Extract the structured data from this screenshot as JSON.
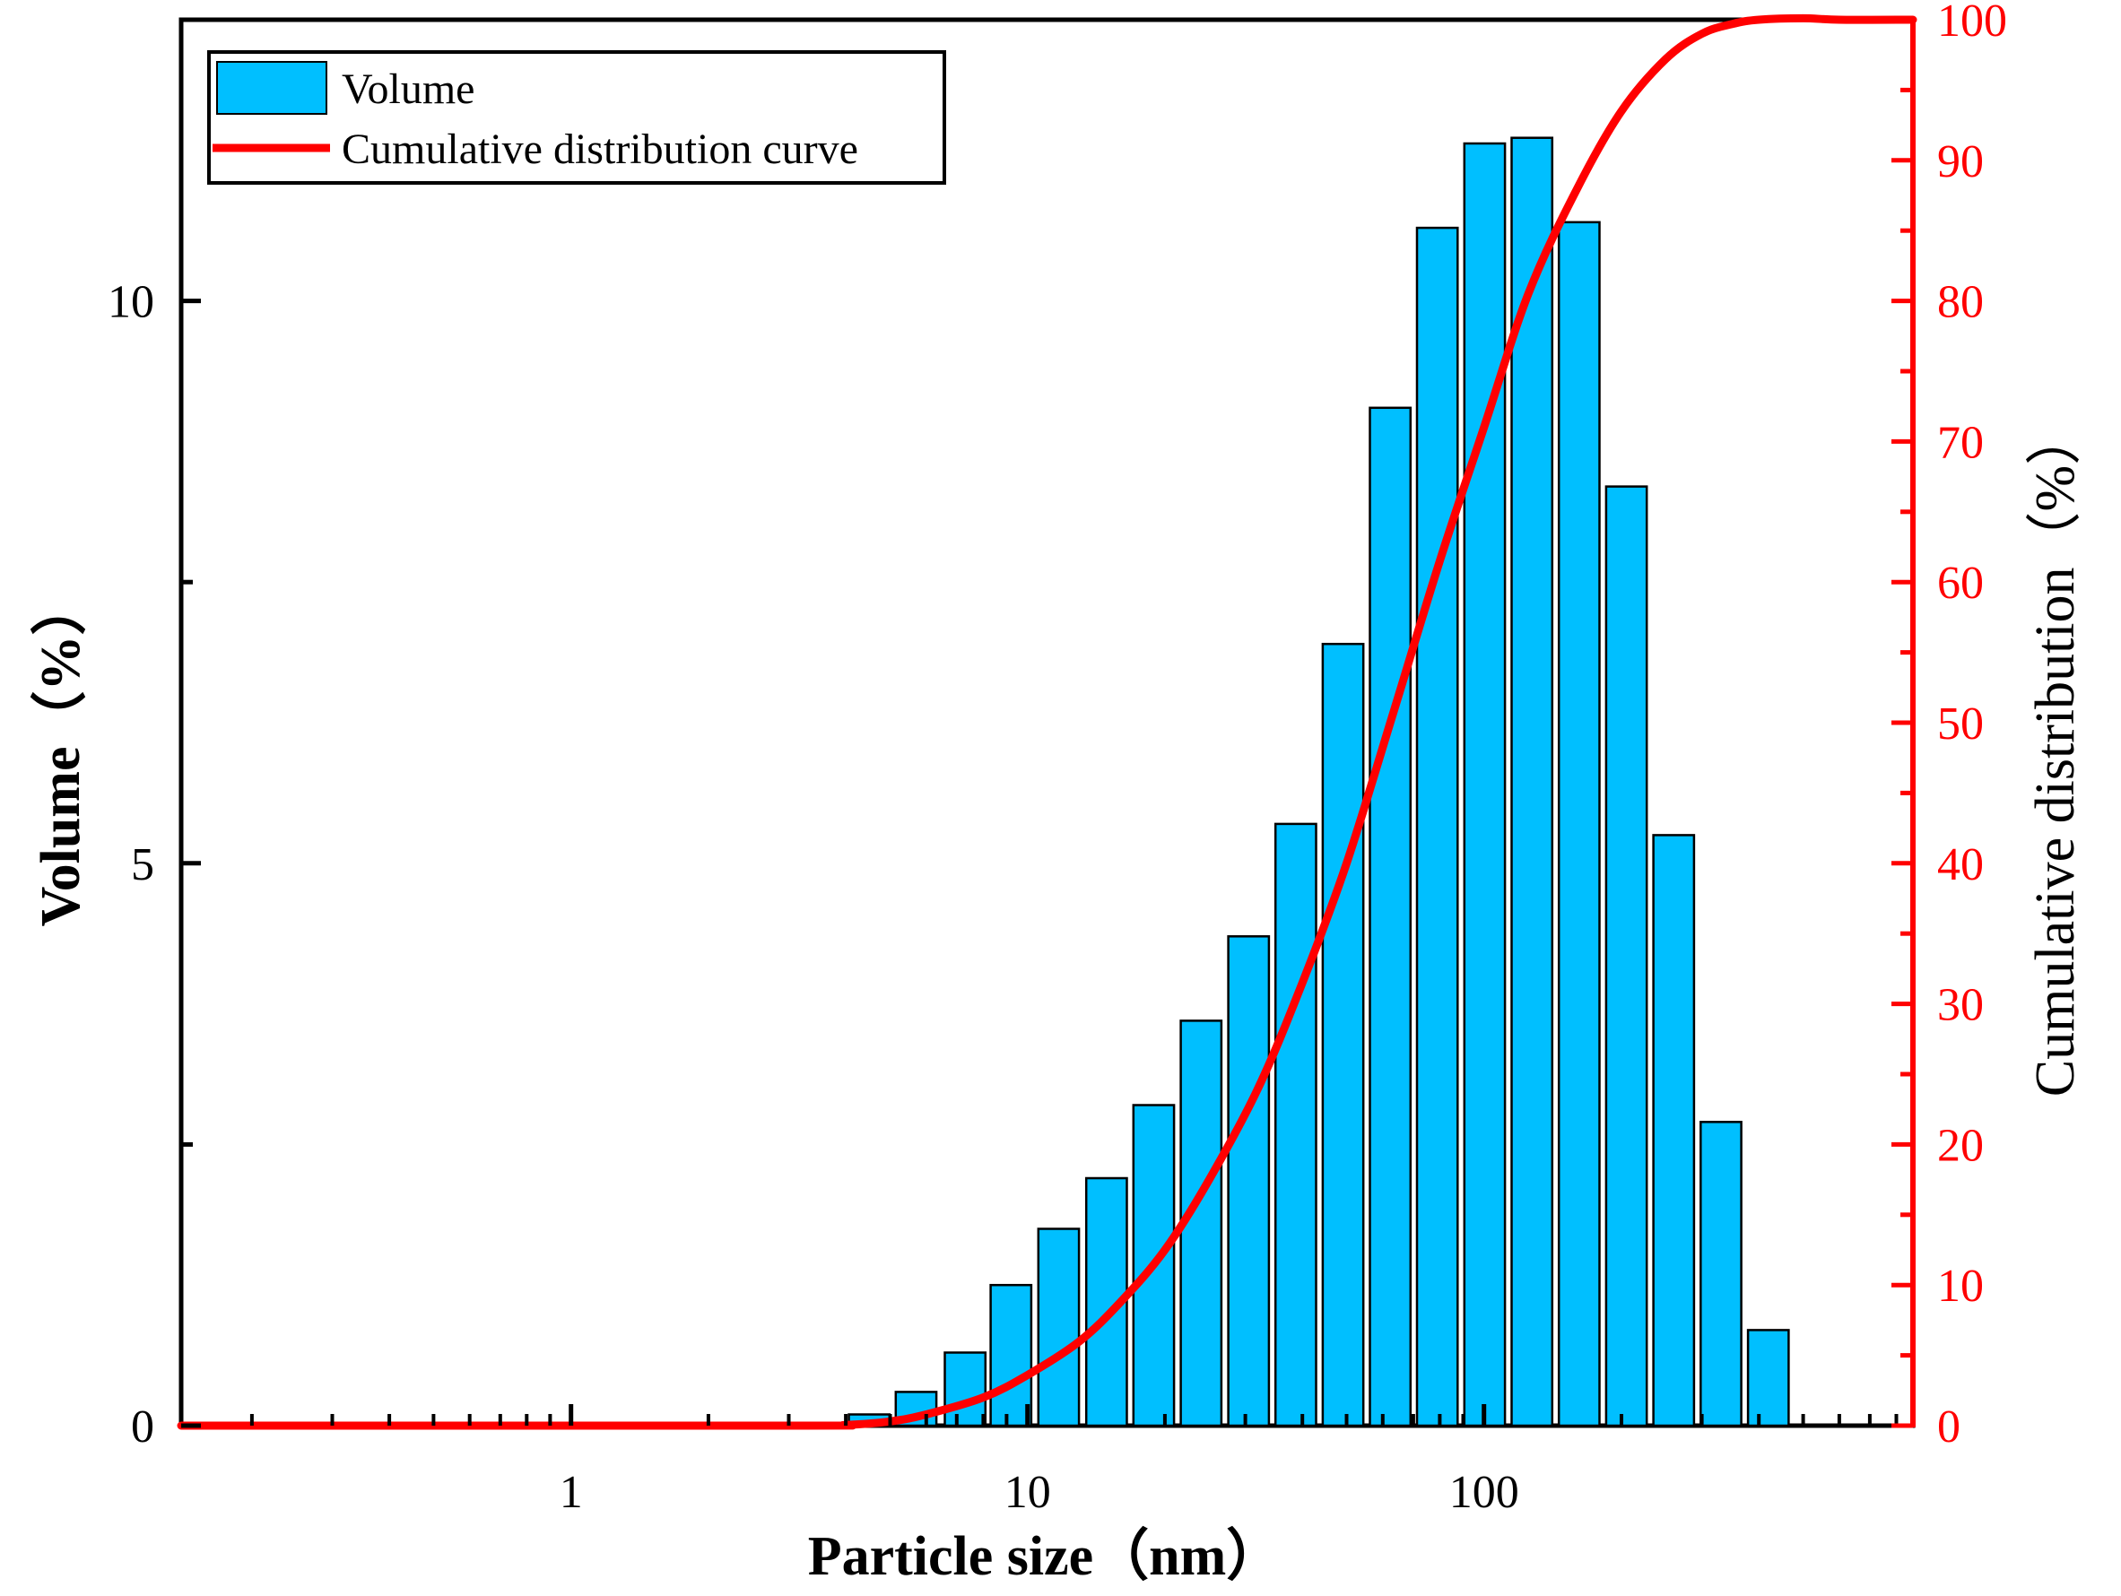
{
  "colors": {
    "bar_fill": "#00BFFF",
    "bar_stroke": "#000000",
    "curve": "#FF0000",
    "axis": "#000000",
    "right_axis": "#FF0000"
  },
  "legend": {
    "volume_label": "Volume",
    "curve_label": "Cumulative distribution curve"
  },
  "chart_data": {
    "type": "bar",
    "title": "",
    "xlabel": "Particle size（nm）",
    "ylabel": "Volume（%）",
    "y2label": "Cumulative distribution（%）",
    "xscale": "log",
    "xlim": [
      0.14,
      870
    ],
    "ylim": [
      0,
      12.5
    ],
    "y2lim": [
      0,
      100
    ],
    "x_ticks": [
      1,
      10,
      100
    ],
    "x_tick_labels": [
      "1",
      "10",
      "100"
    ],
    "y_ticks": [
      0,
      5,
      10
    ],
    "y_tick_labels": [
      "0",
      "5",
      "10"
    ],
    "y2_ticks": [
      0,
      10,
      20,
      30,
      40,
      50,
      60,
      70,
      80,
      90,
      100
    ],
    "y2_tick_labels": [
      "0",
      "10",
      "20",
      "30",
      "40",
      "50",
      "60",
      "70",
      "80",
      "90",
      "100"
    ],
    "legend_position": "top-left",
    "series": [
      {
        "name": "Volume",
        "type": "bar",
        "axis": "left",
        "x": [
          4.5,
          5.7,
          7.3,
          9.2,
          11.7,
          14.9,
          18.9,
          24.0,
          30.5,
          38.7,
          49.1,
          62.3,
          79.0,
          100.3,
          127.3,
          161.6,
          205.1,
          260.3,
          330.4,
          419.4
        ],
        "values": [
          0.1,
          0.3,
          0.65,
          1.25,
          1.75,
          2.2,
          2.85,
          3.6,
          4.35,
          5.35,
          6.95,
          9.05,
          10.65,
          11.4,
          11.45,
          10.7,
          8.35,
          5.25,
          2.7,
          0.85
        ]
      },
      {
        "name": "Cumulative distribution curve",
        "type": "line",
        "axis": "right",
        "x": [
          0.14,
          3.0,
          4.0,
          5.0,
          6.0,
          8.0,
          10.0,
          13.0,
          16.0,
          20.0,
          25.0,
          32.0,
          40.0,
          50.0,
          63.0,
          80.0,
          100.0,
          125.0,
          160.0,
          200.0,
          250.0,
          300.0,
          350.0,
          400.0,
          500.0,
          600.0,
          870.0
        ],
        "values": [
          0,
          0,
          0.05,
          0.3,
          0.8,
          2.0,
          3.6,
          6.0,
          8.8,
          12.5,
          17.5,
          24.0,
          31.5,
          40.0,
          50.5,
          61.5,
          71.0,
          80.5,
          88.0,
          93.5,
          97.2,
          99.0,
          99.7,
          100.0,
          100.1,
          100.0,
          100.0
        ]
      }
    ]
  }
}
